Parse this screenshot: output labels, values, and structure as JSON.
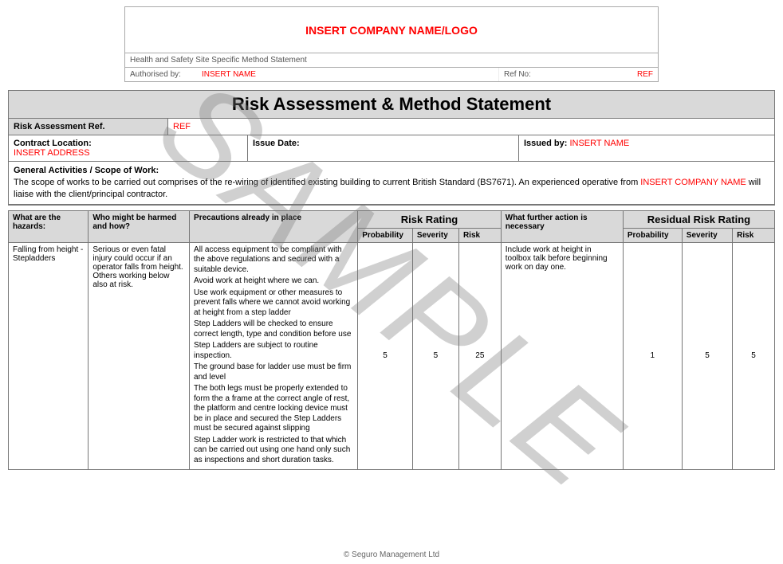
{
  "watermark": "SAMPLE",
  "colors": {
    "placeholder": "#ff0000",
    "header_bg": "#d9d9d9",
    "border": "#777777",
    "text": "#000000",
    "muted": "#555555"
  },
  "header": {
    "logo_text": "INSERT COMPANY NAME/LOGO",
    "subtitle": "Health and Safety Site Specific Method Statement",
    "authorised_by_label": "Authorised by:",
    "authorised_by_value": "INSERT NAME",
    "ref_no_label": "Ref No:",
    "ref_no_value": "REF"
  },
  "main": {
    "title": "Risk Assessment & Method Statement",
    "ref_label": "Risk Assessment Ref.",
    "ref_value": "REF",
    "contract_location_label": "Contract Location:",
    "contract_location_value": "INSERT ADDRESS",
    "issue_date_label": "Issue Date:",
    "issued_by_label": "Issued by:",
    "issued_by_value": "INSERT NAME",
    "scope_label": "General Activities / Scope of Work:",
    "scope_text_part1": "The scope of works to be carried out comprises of the re-wiring of identified existing building to current British Standard (BS7671). An experienced operative from ",
    "scope_company": "INSERT COMPANY NAME",
    "scope_text_part2": " will liaise with the client/principal contractor."
  },
  "risk_headers": {
    "hazards": "What are the hazards:",
    "harm": "Who might be harmed and how?",
    "precautions": "Precautions already in place",
    "rating_group": "Risk Rating",
    "probability": "Probability",
    "severity": "Severity",
    "risk": "Risk",
    "further_action": "What further action is necessary",
    "residual_group": "Residual Risk Rating"
  },
  "rows": [
    {
      "hazard": "Falling from height - Stepladders",
      "harm": "Serious or even fatal injury could occur if an operator falls from height. Others working below also at risk.",
      "precautions": [
        "All access equipment to be compliant with the above regulations and secured with a suitable device.",
        "Avoid work at height where we can.",
        "Use work equipment or other measures to prevent falls where we cannot avoid working at height from a step ladder",
        "Step Ladders will be checked to ensure correct length, type and condition before use",
        "Step Ladders are subject to routine inspection.",
        "The ground base for ladder use must be firm and level",
        "The both legs must be properly extended to form the a frame at the correct angle of rest, the platform and centre locking device must be in place and secured the Step Ladders must be secured against slipping",
        "Step Ladder work is restricted to that which can be carried out using one hand only such as inspections and short duration tasks."
      ],
      "probability": "5",
      "severity": "5",
      "risk": "25",
      "further_action": "Include work at height in toolbox talk before beginning work on day one.",
      "res_probability": "1",
      "res_severity": "5",
      "res_risk": "5"
    }
  ],
  "footer": "© Seguro Management Ltd"
}
